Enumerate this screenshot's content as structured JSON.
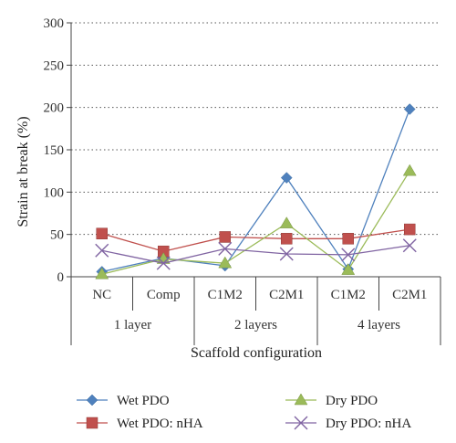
{
  "chart_data": {
    "type": "line",
    "ylabel": "Strain at break (%)",
    "xlabel": "Scaffold configuration",
    "ylim": [
      0,
      300
    ],
    "yticks": [
      0,
      50,
      100,
      150,
      200,
      250,
      300
    ],
    "grid": "horizontal dotted",
    "categories": [
      "NC",
      "Comp",
      "C1M2",
      "C2M1",
      "C1M2",
      "C2M1"
    ],
    "groups": [
      {
        "label": "1 layer",
        "span": [
          0,
          1
        ]
      },
      {
        "label": "2 layers",
        "span": [
          2,
          3
        ]
      },
      {
        "label": "4 layers",
        "span": [
          4,
          5
        ]
      }
    ],
    "legend_position": "bottom",
    "series": [
      {
        "name": "Wet PDO",
        "marker": "diamond",
        "color": "#4f81bd",
        "values": [
          6,
          22,
          13,
          117,
          9,
          198
        ]
      },
      {
        "name": "Wet PDO: nHA",
        "marker": "square",
        "color": "#c0504d",
        "values": [
          51,
          30,
          47,
          45,
          45,
          56
        ]
      },
      {
        "name": "Dry PDO",
        "marker": "triangle",
        "color": "#9bbb59",
        "values": [
          3,
          21,
          16,
          63,
          8,
          125
        ]
      },
      {
        "name": "Dry PDO: nHA",
        "marker": "x",
        "color": "#8064a2",
        "values": [
          31,
          16,
          33,
          27,
          26,
          37
        ]
      }
    ]
  }
}
